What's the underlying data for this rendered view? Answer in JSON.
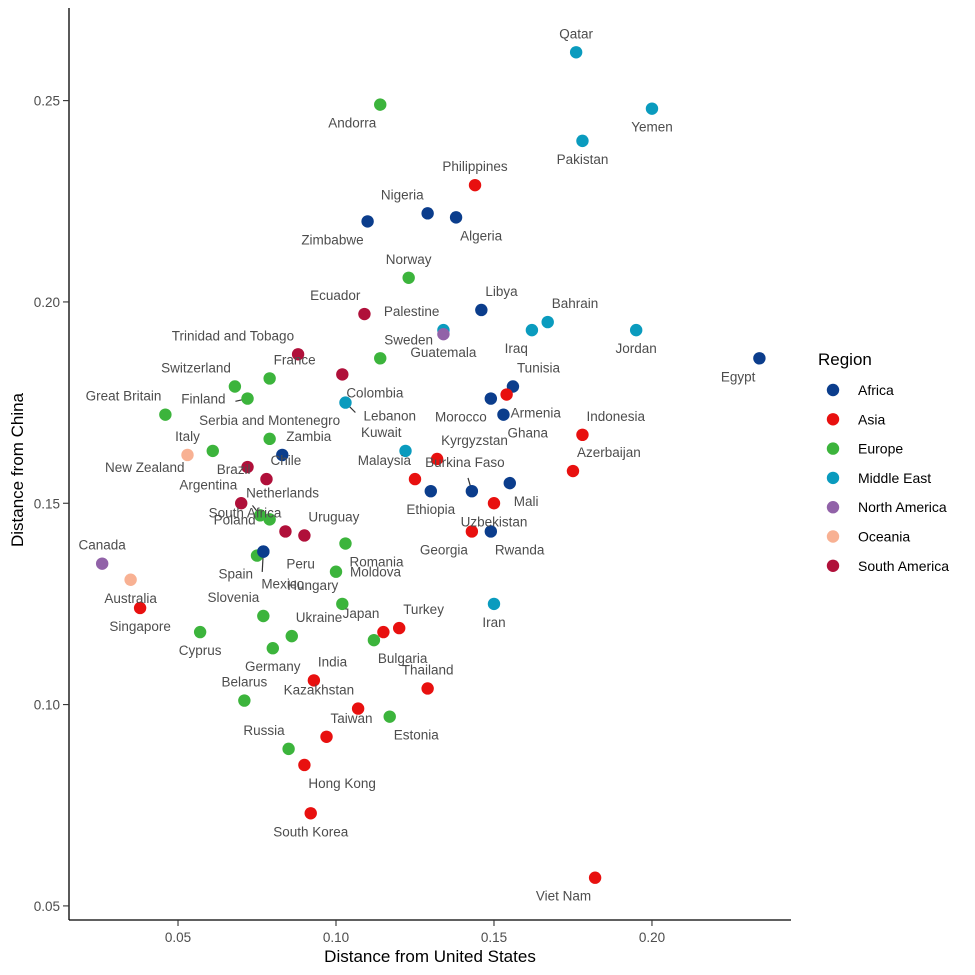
{
  "chart_data": {
    "type": "scatter",
    "xlabel": "Distance from United States",
    "ylabel": "Distance from China",
    "xlim": [
      0.0155,
      0.244
    ],
    "ylim": [
      0.0465,
      0.273
    ],
    "xticks": [
      0.05,
      0.1,
      0.15,
      0.2
    ],
    "xtick_labels": [
      "0.05",
      "0.10",
      "0.15",
      "0.20"
    ],
    "yticks": [
      0.05,
      0.1,
      0.15,
      0.2,
      0.25
    ],
    "ytick_labels": [
      "0.05",
      "0.10",
      "0.15",
      "0.20",
      "0.25"
    ],
    "grid": false,
    "legend": {
      "title": "Region",
      "placement": "right",
      "entries": [
        {
          "name": "Africa",
          "color": "#0b3d8c"
        },
        {
          "name": "Asia",
          "color": "#e8100f"
        },
        {
          "name": "Europe",
          "color": "#3cb43c"
        },
        {
          "name": "Middle East",
          "color": "#0a9bbe"
        },
        {
          "name": "North America",
          "color": "#9162a8"
        },
        {
          "name": "Oceania",
          "color": "#f8b193"
        },
        {
          "name": "South America",
          "color": "#b0103a"
        }
      ]
    },
    "points": [
      {
        "label": "Qatar",
        "region": "Middle East",
        "x": 0.176,
        "y": 0.262,
        "anchor": "above"
      },
      {
        "label": "Yemen",
        "region": "Middle East",
        "x": 0.2,
        "y": 0.248,
        "anchor": "below"
      },
      {
        "label": "Pakistan",
        "region": "Middle East",
        "x": 0.178,
        "y": 0.24,
        "anchor": "below"
      },
      {
        "label": "Andorra",
        "region": "Europe",
        "x": 0.114,
        "y": 0.249,
        "anchor": "below-left"
      },
      {
        "label": "Philippines",
        "region": "Asia",
        "x": 0.144,
        "y": 0.229,
        "anchor": "above"
      },
      {
        "label": "Nigeria",
        "region": "Africa",
        "x": 0.129,
        "y": 0.222,
        "anchor": "above-left"
      },
      {
        "label": "Algeria",
        "region": "Africa",
        "x": 0.138,
        "y": 0.221,
        "anchor": "below-right"
      },
      {
        "label": "Zimbabwe",
        "region": "Africa",
        "x": 0.11,
        "y": 0.22,
        "anchor": "below-left"
      },
      {
        "label": "Norway",
        "region": "Europe",
        "x": 0.123,
        "y": 0.206,
        "anchor": "above"
      },
      {
        "label": "Libya",
        "region": "Africa",
        "x": 0.146,
        "y": 0.198,
        "anchor": "above-right"
      },
      {
        "label": "Ecuador",
        "region": "South America",
        "x": 0.109,
        "y": 0.197,
        "anchor": "above-left"
      },
      {
        "label": "Bahrain",
        "region": "Middle East",
        "x": 0.167,
        "y": 0.195,
        "anchor": "above-right"
      },
      {
        "label": "Palestine",
        "region": "Middle East",
        "x": 0.134,
        "y": 0.193,
        "anchor": "above-left"
      },
      {
        "label": "Iraq",
        "region": "Middle East",
        "x": 0.162,
        "y": 0.193,
        "anchor": "below-left"
      },
      {
        "label": "Jordan",
        "region": "Middle East",
        "x": 0.195,
        "y": 0.193,
        "anchor": "below"
      },
      {
        "label": "Guatemala",
        "region": "North America",
        "x": 0.134,
        "y": 0.192,
        "anchor": "below"
      },
      {
        "label": "Trinidad and Tobago",
        "region": "South America",
        "x": 0.088,
        "y": 0.187,
        "anchor": "above-left"
      },
      {
        "label": "Egypt",
        "region": "Africa",
        "x": 0.234,
        "y": 0.186,
        "anchor": "below-left"
      },
      {
        "label": "Sweden",
        "region": "Europe",
        "x": 0.114,
        "y": 0.186,
        "anchor": "above-right"
      },
      {
        "label": "France",
        "region": "Europe",
        "x": 0.079,
        "y": 0.181,
        "anchor": "above-right"
      },
      {
        "label": "Colombia",
        "region": "South America",
        "x": 0.102,
        "y": 0.182,
        "anchor": "below-right"
      },
      {
        "label": "Tunisia",
        "region": "Africa",
        "x": 0.156,
        "y": 0.179,
        "anchor": "above-right"
      },
      {
        "label": "Switzerland",
        "region": "Europe",
        "x": 0.068,
        "y": 0.179,
        "anchor": "above-left"
      },
      {
        "label": "Armenia",
        "region": "Asia",
        "x": 0.154,
        "y": 0.177,
        "anchor": "below-right"
      },
      {
        "label": "Finland",
        "region": "Europe",
        "x": 0.072,
        "y": 0.176,
        "anchor": "left"
      },
      {
        "label": "Morocco",
        "region": "Africa",
        "x": 0.149,
        "y": 0.176,
        "anchor": "below-left"
      },
      {
        "label": "Lebanon",
        "region": "Middle East",
        "x": 0.103,
        "y": 0.175,
        "anchor": "below-right"
      },
      {
        "label": "Great Britain",
        "region": "Europe",
        "x": 0.046,
        "y": 0.172,
        "anchor": "above-left"
      },
      {
        "label": "Ghana",
        "region": "Africa",
        "x": 0.153,
        "y": 0.172,
        "anchor": "below-right"
      },
      {
        "label": "Serbia and Montenegro",
        "region": "Europe",
        "x": 0.079,
        "y": 0.166,
        "anchor": "above"
      },
      {
        "label": "Indonesia",
        "region": "Asia",
        "x": 0.178,
        "y": 0.167,
        "anchor": "above-right"
      },
      {
        "label": "Zambia",
        "region": "Africa",
        "x": 0.083,
        "y": 0.162,
        "anchor": "above-right"
      },
      {
        "label": "Brazil",
        "region": "Europe",
        "x": 0.061,
        "y": 0.163,
        "anchor": "below-right"
      },
      {
        "label": "Kuwait",
        "region": "Middle East",
        "x": 0.122,
        "y": 0.163,
        "anchor": "above-left"
      },
      {
        "label": "Kyrgyzstan",
        "region": "Asia",
        "x": 0.132,
        "y": 0.161,
        "anchor": "above-right"
      },
      {
        "label": "Italy",
        "region": "Oceania",
        "x": 0.053,
        "y": 0.162,
        "anchor": "above"
      },
      {
        "label": "New Zealand",
        "region": "South America",
        "x": 0.072,
        "y": 0.159,
        "anchor": "left"
      },
      {
        "label": "Chile",
        "region": "South America",
        "x": 0.078,
        "y": 0.156,
        "anchor": "above-right"
      },
      {
        "label": "Azerbaijan",
        "region": "Asia",
        "x": 0.175,
        "y": 0.158,
        "anchor": "above-right"
      },
      {
        "label": "Malaysia",
        "region": "Asia",
        "x": 0.125,
        "y": 0.156,
        "anchor": "above-left"
      },
      {
        "label": "Burkina Faso",
        "region": "Africa",
        "x": 0.143,
        "y": 0.153,
        "anchor": "above"
      },
      {
        "label": "Mali",
        "region": "Africa",
        "x": 0.155,
        "y": 0.155,
        "anchor": "below-right"
      },
      {
        "label": "Ethiopia",
        "region": "Africa",
        "x": 0.13,
        "y": 0.153,
        "anchor": "below"
      },
      {
        "label": "Argentina",
        "region": "South America",
        "x": 0.07,
        "y": 0.15,
        "anchor": "above-left"
      },
      {
        "label": "Uzbekistan",
        "region": "Asia",
        "x": 0.15,
        "y": 0.15,
        "anchor": "below"
      },
      {
        "label": "Netherlands",
        "region": "Europe",
        "x": 0.076,
        "y": 0.147,
        "anchor": "above-right"
      },
      {
        "label": "Poland",
        "region": "Europe",
        "x": 0.079,
        "y": 0.146,
        "anchor": "left"
      },
      {
        "label": "Uruguay",
        "region": "South America",
        "x": 0.09,
        "y": 0.142,
        "anchor": "above-right"
      },
      {
        "label": "Georgia",
        "region": "Asia",
        "x": 0.143,
        "y": 0.143,
        "anchor": "below-left"
      },
      {
        "label": "Rwanda",
        "region": "Africa",
        "x": 0.149,
        "y": 0.143,
        "anchor": "below-right"
      },
      {
        "label": "South Africa",
        "region": "South America",
        "x": 0.084,
        "y": 0.143,
        "anchor": "above-left"
      },
      {
        "label": "Peru",
        "region": "Africa",
        "x": 0.077,
        "y": 0.138,
        "anchor": "right"
      },
      {
        "label": "Romania",
        "region": "Europe",
        "x": 0.103,
        "y": 0.14,
        "anchor": "below-right"
      },
      {
        "label": "Canada",
        "region": "North America",
        "x": 0.026,
        "y": 0.135,
        "anchor": "above"
      },
      {
        "label": "Spain",
        "region": "Europe",
        "x": 0.075,
        "y": 0.137,
        "anchor": "below-left"
      },
      {
        "label": "Mexico",
        "region": "Africa",
        "x": 0.077,
        "y": 0.138,
        "anchor": "below-right"
      },
      {
        "label": "Moldova",
        "region": "Europe",
        "x": 0.1,
        "y": 0.133,
        "anchor": "right"
      },
      {
        "label": "Australia",
        "region": "Oceania",
        "x": 0.035,
        "y": 0.131,
        "anchor": "below"
      },
      {
        "label": "Hungary",
        "region": "Europe",
        "x": 0.102,
        "y": 0.125,
        "anchor": "above-left"
      },
      {
        "label": "Iran",
        "region": "Middle East",
        "x": 0.15,
        "y": 0.125,
        "anchor": "below"
      },
      {
        "label": "Singapore",
        "region": "Asia",
        "x": 0.038,
        "y": 0.124,
        "anchor": "below"
      },
      {
        "label": "Slovenia",
        "region": "Europe",
        "x": 0.077,
        "y": 0.122,
        "anchor": "above-left"
      },
      {
        "label": "Turkey",
        "region": "Asia",
        "x": 0.12,
        "y": 0.119,
        "anchor": "above-right"
      },
      {
        "label": "Japan",
        "region": "Asia",
        "x": 0.115,
        "y": 0.118,
        "anchor": "above-left"
      },
      {
        "label": "Cyprus",
        "region": "Europe",
        "x": 0.057,
        "y": 0.118,
        "anchor": "below"
      },
      {
        "label": "Ukraine",
        "region": "Europe",
        "x": 0.086,
        "y": 0.117,
        "anchor": "above-right"
      },
      {
        "label": "Bulgaria",
        "region": "Europe",
        "x": 0.112,
        "y": 0.116,
        "anchor": "below-right"
      },
      {
        "label": "Germany",
        "region": "Europe",
        "x": 0.08,
        "y": 0.114,
        "anchor": "below"
      },
      {
        "label": "India",
        "region": "Asia",
        "x": 0.093,
        "y": 0.106,
        "anchor": "above-right"
      },
      {
        "label": "Thailand",
        "region": "Asia",
        "x": 0.129,
        "y": 0.104,
        "anchor": "above"
      },
      {
        "label": "Belarus",
        "region": "Europe",
        "x": 0.071,
        "y": 0.101,
        "anchor": "above"
      },
      {
        "label": "Kazakhstan",
        "region": "Asia",
        "x": 0.107,
        "y": 0.099,
        "anchor": "above-left"
      },
      {
        "label": "Estonia",
        "region": "Europe",
        "x": 0.117,
        "y": 0.097,
        "anchor": "below-right"
      },
      {
        "label": "Taiwan",
        "region": "Asia",
        "x": 0.097,
        "y": 0.092,
        "anchor": "above-right"
      },
      {
        "label": "Russia",
        "region": "Europe",
        "x": 0.085,
        "y": 0.089,
        "anchor": "above-left"
      },
      {
        "label": "Hong Kong",
        "region": "Asia",
        "x": 0.09,
        "y": 0.085,
        "anchor": "below-right"
      },
      {
        "label": "South Korea",
        "region": "Asia",
        "x": 0.092,
        "y": 0.073,
        "anchor": "below"
      },
      {
        "label": "Viet Nam",
        "region": "Asia",
        "x": 0.182,
        "y": 0.057,
        "anchor": "below-left"
      }
    ]
  }
}
